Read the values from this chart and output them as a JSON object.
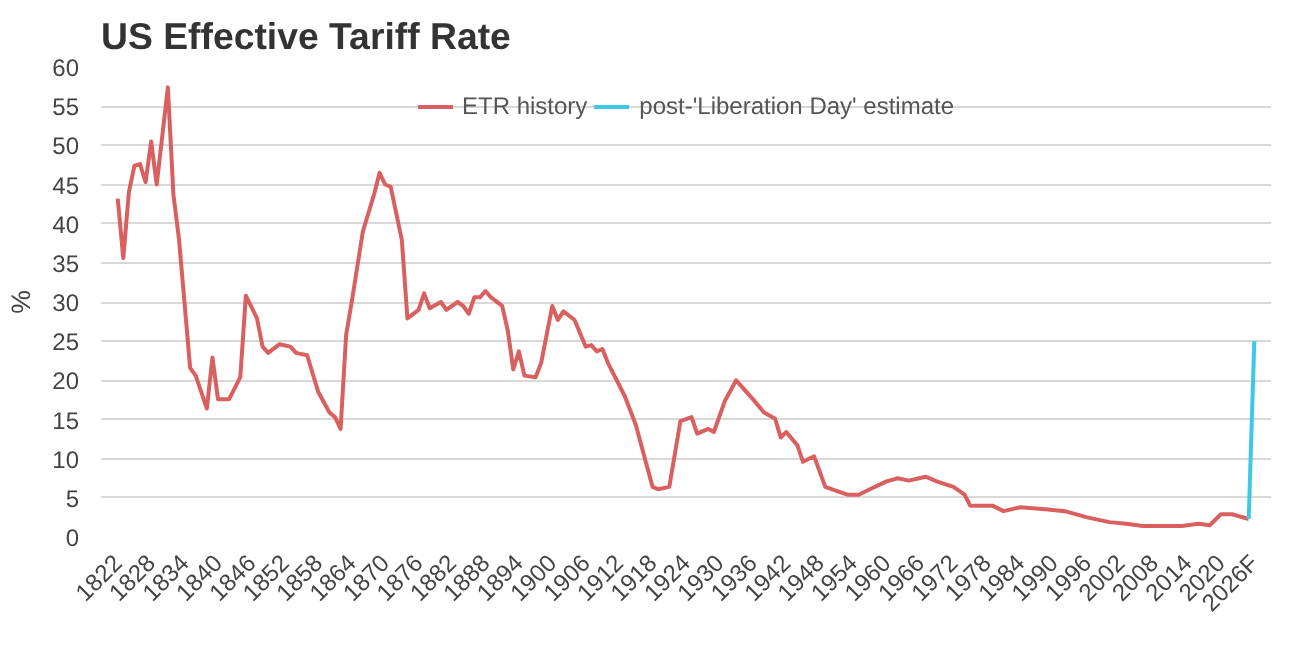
{
  "chart_data": {
    "type": "line",
    "title": "US Effective Tariff Rate",
    "ylabel": "%",
    "legend": "top",
    "grid": "y",
    "marker": "none",
    "line_style": "solid",
    "xlim": [
      1819,
      2029
    ],
    "ylim": [
      0,
      60
    ],
    "xticks": [
      1822,
      1828,
      1834,
      1840,
      1846,
      1852,
      1858,
      1864,
      1870,
      1876,
      1882,
      1888,
      1894,
      1900,
      1906,
      1912,
      1918,
      1924,
      1930,
      1936,
      1942,
      1948,
      1954,
      1960,
      1966,
      1972,
      1978,
      1984,
      1990,
      1996,
      2002,
      2008,
      2014,
      2020,
      {
        "value": 2026,
        "label": "2026F"
      }
    ],
    "yticks": [
      0,
      5,
      10,
      15,
      20,
      25,
      30,
      35,
      40,
      45,
      50,
      55,
      60
    ],
    "series": [
      {
        "name": "ETR history",
        "color": "#d9605e",
        "x": [
          1822,
          1823,
          1824,
          1825,
          1826,
          1827,
          1828,
          1829,
          1831,
          1832,
          1833,
          1835,
          1836,
          1838,
          1839,
          1840,
          1842,
          1844,
          1845,
          1847,
          1848,
          1849,
          1851,
          1853,
          1854,
          1856,
          1858,
          1860,
          1861,
          1862,
          1863,
          1864,
          1866,
          1868,
          1869,
          1870,
          1871,
          1873,
          1874,
          1876,
          1877,
          1878,
          1880,
          1881,
          1883,
          1884,
          1885,
          1886,
          1887,
          1888,
          1889,
          1891,
          1892,
          1893,
          1894,
          1895,
          1897,
          1898,
          1900,
          1901,
          1902,
          1904,
          1906,
          1907,
          1908,
          1909,
          1910,
          1913,
          1915,
          1917,
          1918,
          1919,
          1921,
          1923,
          1925,
          1926,
          1928,
          1929,
          1931,
          1933,
          1936,
          1938,
          1940,
          1941,
          1942,
          1944,
          1945,
          1947,
          1949,
          1951,
          1953,
          1955,
          1957,
          1960,
          1962,
          1964,
          1967,
          1969,
          1972,
          1974,
          1975,
          1979,
          1981,
          1984,
          1989,
          1992,
          1996,
          2000,
          2003,
          2006,
          2013,
          2016,
          2018,
          2020,
          2022,
          2025
        ],
        "values": [
          43.2,
          35.6,
          44,
          47.4,
          47.6,
          45.3,
          50.5,
          45,
          57.4,
          43.7,
          38,
          21.6,
          20.6,
          16.4,
          22.9,
          17.6,
          17.6,
          20.4,
          30.8,
          27.9,
          24.3,
          23.5,
          24.6,
          24.3,
          23.5,
          23.2,
          18.5,
          15.9,
          15.3,
          13.8,
          25.8,
          30,
          39,
          43.7,
          46.5,
          45,
          44.7,
          37.9,
          27.9,
          29,
          31.1,
          29.2,
          30,
          29,
          30,
          29.5,
          28.5,
          30.6,
          30.6,
          31.4,
          30.6,
          29.5,
          26.4,
          21.4,
          23.7,
          20.6,
          20.4,
          22.2,
          29.5,
          27.7,
          28.8,
          27.7,
          24.3,
          24.5,
          23.7,
          24,
          22.2,
          18,
          14.3,
          9,
          6.4,
          6.1,
          6.4,
          14.8,
          15.3,
          13.2,
          13.8,
          13.4,
          17.4,
          20,
          17.6,
          15.9,
          15.1,
          12.7,
          13.4,
          11.7,
          9.6,
          10.3,
          6.4,
          5.9,
          5.4,
          5.4,
          6.1,
          7.1,
          7.5,
          7.2,
          7.7,
          7.1,
          6.4,
          5.4,
          4,
          4,
          3.3,
          3.8,
          3.5,
          3.3,
          2.5,
          1.9,
          1.7,
          1.4,
          1.4,
          1.7,
          1.5,
          2.9,
          2.9,
          2.3
        ]
      },
      {
        "name": "post-'Liberation Day' estimate",
        "color": "#3ec8e8",
        "x": [
          2025,
          2026
        ],
        "values": [
          2.3,
          25
        ]
      }
    ]
  }
}
